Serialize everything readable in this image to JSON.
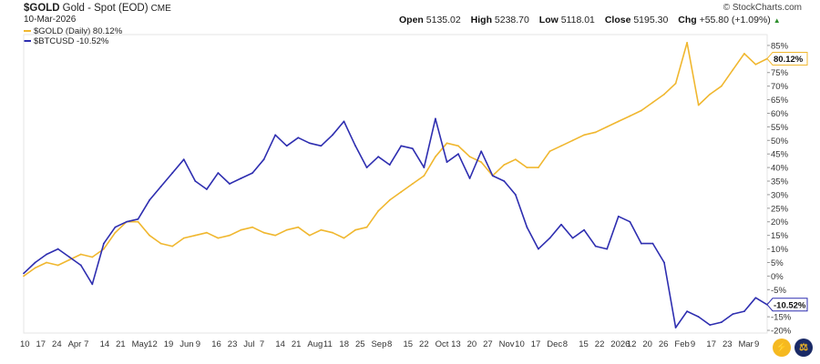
{
  "header": {
    "symbol": "$GOLD",
    "name": "Gold - Spot (EOD)",
    "exchange": "CME",
    "date": "10-Mar-2026",
    "brand": "© StockCharts.com",
    "open_label": "Open",
    "open": "5135.02",
    "high_label": "High",
    "high": "5238.70",
    "low_label": "Low",
    "low": "5118.01",
    "close_label": "Close",
    "close": "5195.30",
    "chg_label": "Chg",
    "chg": "+55.80 (+1.09%)",
    "chg_icon": "up-triangle-icon"
  },
  "legend": [
    {
      "label": "$GOLD (Daily) 80.12%",
      "color": "#f0b72f"
    },
    {
      "label": "$BTCUSD -10.52%",
      "color": "#2e2eb0"
    }
  ],
  "last_value_labels": {
    "gold": "80.12%",
    "btc": "-10.52%"
  },
  "footer_icons": {
    "left": "lightning-icon",
    "right": "scale-icon"
  },
  "chart_data": {
    "type": "line",
    "x_tick_labels": [
      "10",
      "17",
      "24",
      "Apr",
      "7",
      "14",
      "21",
      "May",
      "12",
      "19",
      "Jun",
      "9",
      "16",
      "23",
      "Jul",
      "7",
      "14",
      "21",
      "Aug",
      "11",
      "18",
      "25",
      "Sep",
      "8",
      "15",
      "22",
      "Oct",
      "13",
      "20",
      "27",
      "Nov",
      "10",
      "17",
      "Dec",
      "8",
      "15",
      "22",
      "2026",
      "12",
      "20",
      "26",
      "Feb",
      "9",
      "17",
      "23",
      "Mar",
      "9"
    ],
    "y_ticks": [
      85,
      80,
      75,
      70,
      65,
      60,
      55,
      50,
      45,
      40,
      35,
      30,
      25,
      20,
      15,
      10,
      5,
      0,
      -5,
      -10,
      -15,
      -20
    ],
    "y_tick_labels": [
      "85%",
      "80%",
      "75%",
      "70%",
      "65%",
      "60%",
      "55%",
      "50%",
      "45%",
      "40%",
      "35%",
      "30%",
      "25%",
      "20%",
      "15%",
      "10%",
      "5%",
      "0%",
      "-5%",
      "-10%",
      "-15%",
      "-20%"
    ],
    "ylim": [
      -21,
      89
    ],
    "x_range": [
      0,
      52
    ],
    "series": [
      {
        "name": "$GOLD (Daily)",
        "color": "#f0b72f",
        "points": [
          [
            0,
            0
          ],
          [
            0.8,
            3
          ],
          [
            1.6,
            5
          ],
          [
            2.4,
            4
          ],
          [
            3.2,
            6
          ],
          [
            4,
            8
          ],
          [
            4.8,
            7
          ],
          [
            5.6,
            10
          ],
          [
            6.4,
            16
          ],
          [
            7.2,
            20
          ],
          [
            8,
            20
          ],
          [
            8.8,
            15
          ],
          [
            9.6,
            12
          ],
          [
            10.4,
            11
          ],
          [
            11.2,
            14
          ],
          [
            12,
            15
          ],
          [
            12.8,
            16
          ],
          [
            13.6,
            14
          ],
          [
            14.4,
            15
          ],
          [
            15.2,
            17
          ],
          [
            16,
            18
          ],
          [
            16.8,
            16
          ],
          [
            17.6,
            15
          ],
          [
            18.4,
            17
          ],
          [
            19.2,
            18
          ],
          [
            20,
            15
          ],
          [
            20.8,
            17
          ],
          [
            21.6,
            16
          ],
          [
            22.4,
            14
          ],
          [
            23.2,
            17
          ],
          [
            24,
            18
          ],
          [
            24.8,
            24
          ],
          [
            25.6,
            28
          ],
          [
            26.4,
            31
          ],
          [
            27.2,
            34
          ],
          [
            28,
            37
          ],
          [
            28.8,
            44
          ],
          [
            29.6,
            49
          ],
          [
            30.4,
            48
          ],
          [
            31.2,
            44
          ],
          [
            32,
            42
          ],
          [
            32.8,
            37
          ],
          [
            33.6,
            41
          ],
          [
            34.4,
            43
          ],
          [
            35.2,
            40
          ],
          [
            36,
            40
          ],
          [
            36.8,
            46
          ],
          [
            37.6,
            48
          ],
          [
            38.4,
            50
          ],
          [
            39.2,
            52
          ],
          [
            40,
            53
          ],
          [
            40.8,
            55
          ],
          [
            41.6,
            57
          ],
          [
            42.4,
            59
          ],
          [
            43.2,
            61
          ],
          [
            44,
            64
          ],
          [
            44.8,
            67
          ],
          [
            45.6,
            71
          ],
          [
            46.4,
            86
          ],
          [
            47.2,
            63
          ],
          [
            48,
            67
          ],
          [
            48.8,
            70
          ],
          [
            49.6,
            76
          ],
          [
            50.4,
            82
          ],
          [
            51.2,
            78
          ],
          [
            52,
            80.12
          ]
        ]
      },
      {
        "name": "$BTCUSD",
        "color": "#2e2eb0",
        "points": [
          [
            0,
            1
          ],
          [
            0.8,
            5
          ],
          [
            1.6,
            8
          ],
          [
            2.4,
            10
          ],
          [
            3.2,
            7
          ],
          [
            4,
            4
          ],
          [
            4.8,
            -3
          ],
          [
            5.6,
            12
          ],
          [
            6.4,
            18
          ],
          [
            7.2,
            20
          ],
          [
            8,
            21
          ],
          [
            8.8,
            28
          ],
          [
            9.6,
            33
          ],
          [
            10.4,
            38
          ],
          [
            11.2,
            43
          ],
          [
            12,
            35
          ],
          [
            12.8,
            32
          ],
          [
            13.6,
            38
          ],
          [
            14.4,
            34
          ],
          [
            15.2,
            36
          ],
          [
            16,
            38
          ],
          [
            16.8,
            43
          ],
          [
            17.6,
            52
          ],
          [
            18.4,
            48
          ],
          [
            19.2,
            51
          ],
          [
            20,
            49
          ],
          [
            20.8,
            48
          ],
          [
            21.6,
            52
          ],
          [
            22.4,
            57
          ],
          [
            23.2,
            48
          ],
          [
            24,
            40
          ],
          [
            24.8,
            44
          ],
          [
            25.6,
            41
          ],
          [
            26.4,
            48
          ],
          [
            27.2,
            47
          ],
          [
            28,
            40
          ],
          [
            28.8,
            58
          ],
          [
            29.6,
            42
          ],
          [
            30.4,
            45
          ],
          [
            31.2,
            36
          ],
          [
            32,
            46
          ],
          [
            32.8,
            37
          ],
          [
            33.6,
            35
          ],
          [
            34.4,
            30
          ],
          [
            35.2,
            18
          ],
          [
            36,
            10
          ],
          [
            36.8,
            14
          ],
          [
            37.6,
            19
          ],
          [
            38.4,
            14
          ],
          [
            39.2,
            17
          ],
          [
            40,
            11
          ],
          [
            40.8,
            10
          ],
          [
            41.6,
            22
          ],
          [
            42.4,
            20
          ],
          [
            43.2,
            12
          ],
          [
            44,
            12
          ],
          [
            44.8,
            5
          ],
          [
            45.6,
            -19
          ],
          [
            46.4,
            -13
          ],
          [
            47.2,
            -15
          ],
          [
            48,
            -18
          ],
          [
            48.8,
            -17
          ],
          [
            49.6,
            -14
          ],
          [
            50.4,
            -13
          ],
          [
            51.2,
            -8
          ],
          [
            52,
            -10.52
          ]
        ]
      }
    ]
  }
}
